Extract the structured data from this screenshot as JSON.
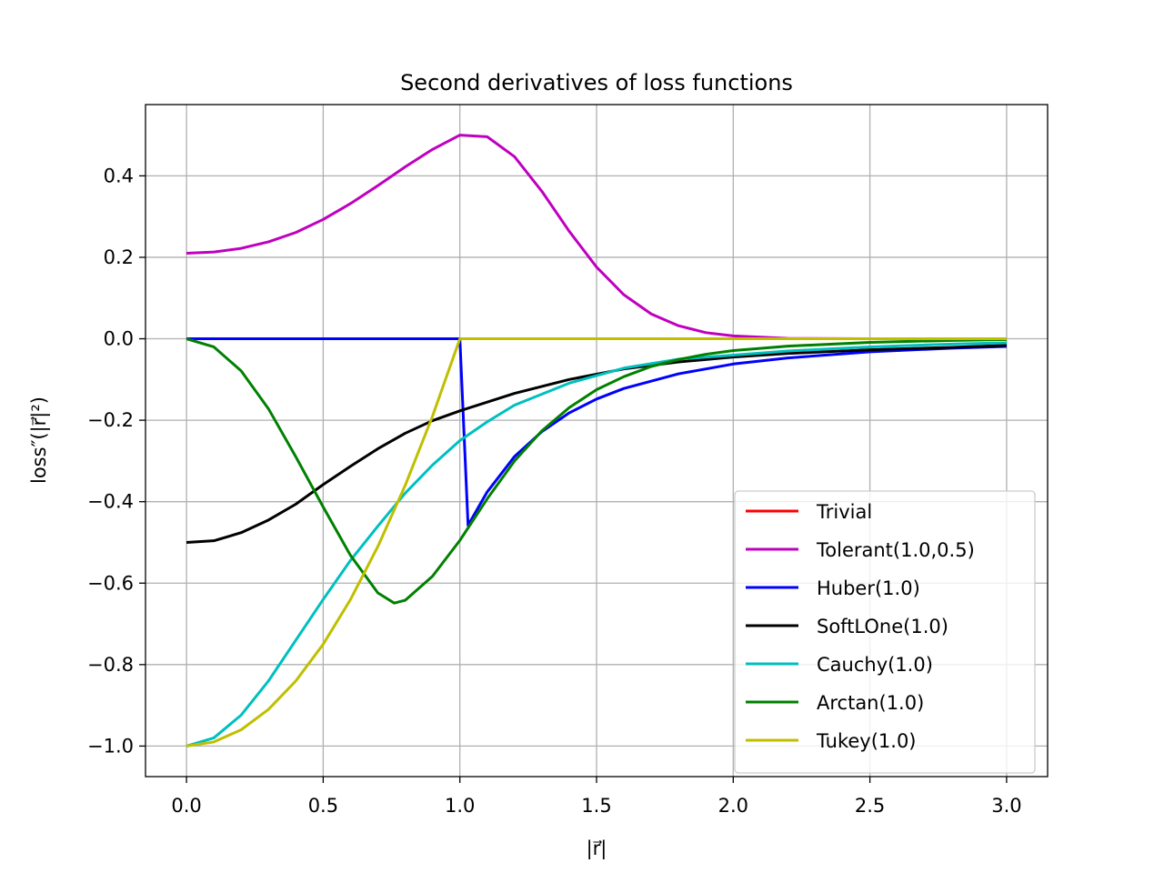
{
  "chart_data": {
    "type": "line",
    "title": "Second derivatives of loss functions",
    "xlabel": "|r⃗|",
    "ylabel": "loss″(|r⃗|²)",
    "xlim": [
      -0.15,
      3.15
    ],
    "ylim": [
      -1.075,
      0.575
    ],
    "xticks": [
      0.0,
      0.5,
      1.0,
      1.5,
      2.0,
      2.5,
      3.0
    ],
    "xtick_labels": [
      "0.0",
      "0.5",
      "1.0",
      "1.5",
      "2.0",
      "2.5",
      "3.0"
    ],
    "yticks": [
      0.4,
      0.2,
      0.0,
      -0.2,
      -0.4,
      -0.6,
      -0.8,
      -1.0
    ],
    "ytick_labels": [
      "0.4",
      "0.2",
      "0.0",
      "−0.2",
      "−0.4",
      "−0.6",
      "−0.8",
      "−1.0"
    ],
    "grid": true,
    "legend_position": "lower right",
    "series": [
      {
        "name": "Trivial",
        "color": "#ff0000",
        "x": [
          0.0,
          3.0
        ],
        "y": [
          0.0,
          0.0
        ]
      },
      {
        "name": "Tolerant(1.0,0.5)",
        "color": "#bf00bf",
        "x": [
          0.0,
          0.1,
          0.2,
          0.3,
          0.4,
          0.5,
          0.6,
          0.7,
          0.8,
          0.9,
          1.0,
          1.1,
          1.2,
          1.3,
          1.4,
          1.5,
          1.6,
          1.7,
          1.8,
          1.9,
          2.0,
          2.2,
          2.5,
          3.0
        ],
        "y": [
          0.21,
          0.213,
          0.222,
          0.238,
          0.261,
          0.293,
          0.332,
          0.376,
          0.422,
          0.465,
          0.5,
          0.496,
          0.447,
          0.362,
          0.264,
          0.176,
          0.108,
          0.061,
          0.032,
          0.015,
          0.007,
          0.001,
          0.0,
          0.0
        ]
      },
      {
        "name": "Huber(1.0)",
        "color": "#0000ff",
        "x": [
          0.0,
          1.0,
          1.03,
          1.03,
          1.1,
          1.2,
          1.3,
          1.4,
          1.5,
          1.6,
          1.8,
          2.0,
          2.2,
          2.5,
          2.8,
          3.0
        ],
        "y": [
          0.0,
          0.0,
          -0.458,
          -0.458,
          -0.376,
          -0.289,
          -0.228,
          -0.182,
          -0.148,
          -0.122,
          -0.086,
          -0.062,
          -0.047,
          -0.032,
          -0.023,
          -0.019
        ]
      },
      {
        "name": "SoftLOne(1.0)",
        "color": "#000000",
        "x": [
          0.0,
          0.1,
          0.2,
          0.3,
          0.4,
          0.5,
          0.6,
          0.7,
          0.8,
          0.9,
          1.0,
          1.2,
          1.4,
          1.6,
          1.8,
          2.0,
          2.2,
          2.5,
          2.8,
          3.0
        ],
        "y": [
          -0.5,
          -0.496,
          -0.476,
          -0.445,
          -0.406,
          -0.358,
          -0.313,
          -0.27,
          -0.232,
          -0.201,
          -0.177,
          -0.134,
          -0.1,
          -0.074,
          -0.057,
          -0.045,
          -0.036,
          -0.027,
          -0.021,
          -0.016
        ]
      },
      {
        "name": "Cauchy(1.0)",
        "color": "#00bfbf",
        "x": [
          0.0,
          0.1,
          0.2,
          0.3,
          0.4,
          0.5,
          0.6,
          0.7,
          0.8,
          0.9,
          1.0,
          1.1,
          1.2,
          1.4,
          1.6,
          1.8,
          2.0,
          2.2,
          2.5,
          2.8,
          3.0
        ],
        "y": [
          -1.0,
          -0.98,
          -0.924,
          -0.84,
          -0.74,
          -0.64,
          -0.544,
          -0.46,
          -0.379,
          -0.31,
          -0.25,
          -0.204,
          -0.163,
          -0.109,
          -0.072,
          -0.05,
          -0.04,
          -0.03,
          -0.02,
          -0.013,
          -0.01
        ]
      },
      {
        "name": "Arctan(1.0)",
        "color": "#008000",
        "x": [
          0.0,
          0.1,
          0.2,
          0.3,
          0.4,
          0.5,
          0.6,
          0.7,
          0.76,
          0.8,
          0.9,
          1.0,
          1.1,
          1.2,
          1.3,
          1.4,
          1.5,
          1.6,
          1.7,
          1.8,
          1.9,
          2.0,
          2.2,
          2.5,
          2.8,
          3.0
        ],
        "y": [
          0.0,
          -0.02,
          -0.079,
          -0.172,
          -0.29,
          -0.413,
          -0.532,
          -0.624,
          -0.649,
          -0.642,
          -0.583,
          -0.495,
          -0.393,
          -0.3,
          -0.226,
          -0.169,
          -0.125,
          -0.093,
          -0.068,
          -0.051,
          -0.038,
          -0.029,
          -0.018,
          -0.009,
          -0.004,
          -0.002
        ]
      },
      {
        "name": "Tukey(1.0)",
        "color": "#bfbf00",
        "x": [
          0.0,
          0.1,
          0.2,
          0.3,
          0.4,
          0.5,
          0.6,
          0.7,
          0.8,
          0.9,
          1.0,
          3.0
        ],
        "y": [
          -1.0,
          -0.99,
          -0.96,
          -0.91,
          -0.84,
          -0.75,
          -0.64,
          -0.51,
          -0.36,
          -0.19,
          0.0,
          0.0
        ]
      }
    ]
  }
}
